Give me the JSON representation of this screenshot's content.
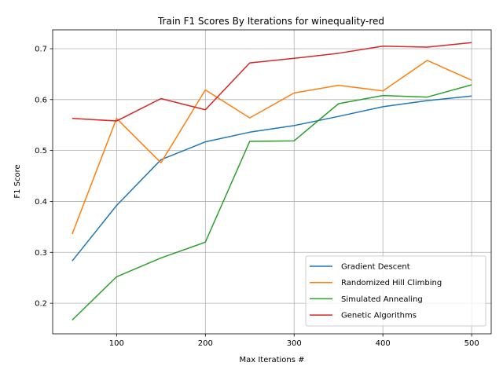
{
  "chart_data": {
    "type": "line",
    "title": "Train F1 Scores By Iterations for winequality-red",
    "xlabel": "Max Iterations #",
    "ylabel": "F1 Score",
    "xlim": [
      28,
      522
    ],
    "ylim": [
      0.14,
      0.737
    ],
    "xticks": [
      100,
      200,
      300,
      400,
      500
    ],
    "yticks": [
      0.2,
      0.3,
      0.4,
      0.5,
      0.6,
      0.7
    ],
    "xtick_labels": [
      "100",
      "200",
      "300",
      "400",
      "500"
    ],
    "ytick_labels": [
      "0.2",
      "0.3",
      "0.4",
      "0.5",
      "0.6",
      "0.7"
    ],
    "grid": true,
    "legend_position": "lower-right",
    "x": [
      50,
      100,
      150,
      200,
      250,
      300,
      350,
      400,
      450,
      500
    ],
    "series": [
      {
        "name": "Gradient Descent",
        "color": "#1f77b4",
        "values": [
          0.283,
          0.392,
          0.482,
          0.517,
          0.536,
          0.549,
          0.567,
          0.586,
          0.598,
          0.607
        ]
      },
      {
        "name": "Randomized Hill Climbing",
        "color": "#ff7f0e",
        "values": [
          0.336,
          0.563,
          0.476,
          0.619,
          0.564,
          0.613,
          0.628,
          0.617,
          0.677,
          0.638
        ]
      },
      {
        "name": "Simulated Annealing",
        "color": "#2ca02c",
        "values": [
          0.167,
          0.252,
          0.289,
          0.32,
          0.518,
          0.519,
          0.592,
          0.608,
          0.605,
          0.629
        ]
      },
      {
        "name": "Genetic Algorithms",
        "color": "#d62728",
        "values": [
          0.563,
          0.558,
          0.602,
          0.58,
          0.672,
          0.681,
          0.691,
          0.705,
          0.703,
          0.712
        ]
      }
    ]
  }
}
